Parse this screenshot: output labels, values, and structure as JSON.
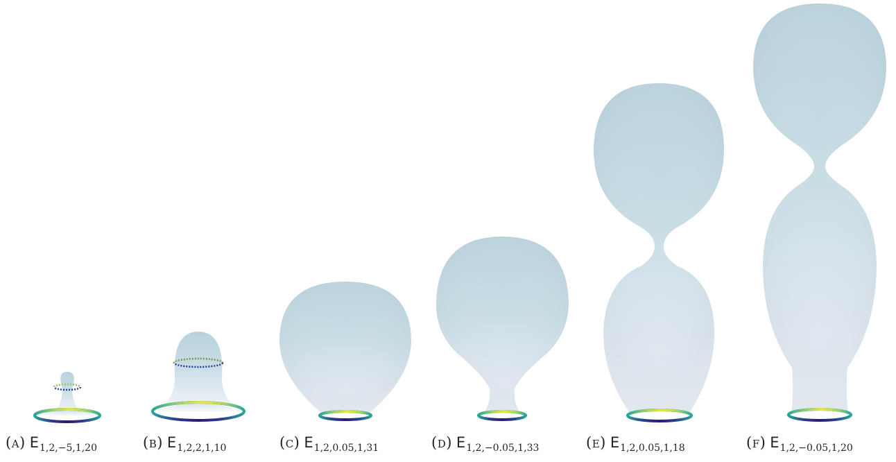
{
  "panels": [
    {
      "tag": "(a)",
      "symbol": "E",
      "subscript": "1,2,−5,1,20"
    },
    {
      "tag": "(b)",
      "symbol": "E",
      "subscript": "1,2,2,1,10"
    },
    {
      "tag": "(c)",
      "symbol": "E",
      "subscript": "1,2,0.05,1,31"
    },
    {
      "tag": "(d)",
      "symbol": "E",
      "subscript": "1,2,−0.05,1,33"
    },
    {
      "tag": "(e)",
      "symbol": "E",
      "subscript": "1,2,0.05,1,18"
    },
    {
      "tag": "(f)",
      "symbol": "E",
      "subscript": "1,2,−0.05,1,20"
    }
  ],
  "colors": {
    "surface_light": "#eef1f8",
    "surface_mid": "#c9dbe3",
    "surface_dark": "#b6cfd9",
    "ring_dark": "#2b1c6e",
    "ring_teal": "#2aa59a",
    "ring_yellow": "#e7e845",
    "background": "#ffffff"
  }
}
